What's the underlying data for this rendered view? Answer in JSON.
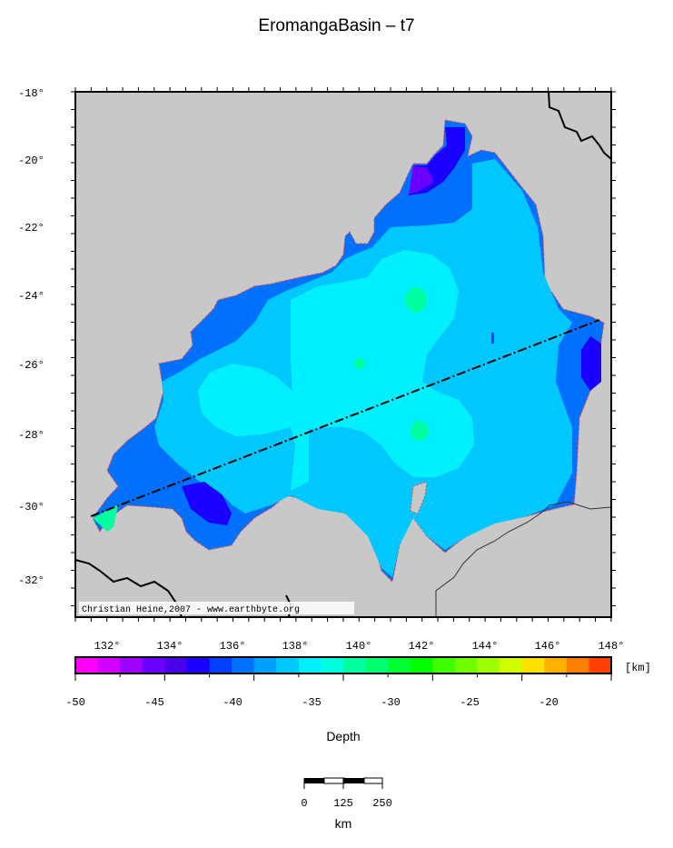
{
  "title": "EromangaBasin – t7",
  "credit": "Christian Heine,2007 - www.earthbyte.org",
  "lat_labels": [
    "-18°",
    "-20°",
    "-22°",
    "-24°",
    "-26°",
    "-28°",
    "-30°",
    "-32°"
  ],
  "lon_labels": [
    "132°",
    "134°",
    "136°",
    "138°",
    "140°",
    "142°",
    "144°",
    "146°",
    "148°"
  ],
  "colorbar": {
    "unit": "[km]",
    "ticks": [
      "-50",
      "-45",
      "-40",
      "-35",
      "-30",
      "-25",
      "-20"
    ],
    "title": "Depth",
    "colors": [
      "#ff00ff",
      "#d200ff",
      "#a000ff",
      "#6a00ff",
      "#4a00e8",
      "#1b00ff",
      "#0040ff",
      "#0070ff",
      "#00a0ff",
      "#00c8ff",
      "#00f0ff",
      "#00ffe0",
      "#00ffa0",
      "#00ff70",
      "#00ff30",
      "#00ff00",
      "#40ff00",
      "#70ff00",
      "#a0ff00",
      "#d0ff00",
      "#ffe000",
      "#ffb000",
      "#ff8000",
      "#ff4000"
    ]
  },
  "scale": {
    "ticks": [
      "0",
      "125",
      "250"
    ],
    "unit": "km"
  },
  "colors": {
    "land_gray": "#c8c8c8",
    "deep_blue": "#0070ff",
    "mid_blue": "#00c8ff",
    "cyan": "#00ffff",
    "green": "#00ffa0",
    "dark_blue": "#1b00ff",
    "violet": "#6a00ff"
  }
}
